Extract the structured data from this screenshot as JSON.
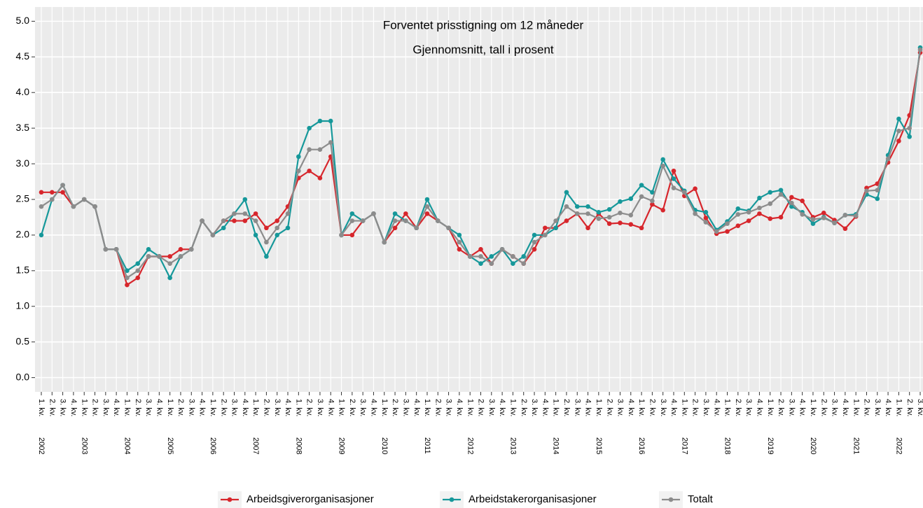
{
  "chart_data": {
    "type": "line",
    "title": "Forventet prisstigning om 12 måneder",
    "subtitle": "Gjennomsnitt, tall i prosent",
    "categories": [
      "1. kv.",
      "2. kv.",
      "3. kv.",
      "4. kv.",
      "1. kv.",
      "2. kv.",
      "3. kv.",
      "4. kv.",
      "1. kv.",
      "2. kv.",
      "3. kv.",
      "4. kv.",
      "1. kv.",
      "2. kv.",
      "3. kv.",
      "4. kv.",
      "1. kv.",
      "2. kv.",
      "3. kv.",
      "4. kv.",
      "1. kv.",
      "2. kv.",
      "3. kv.",
      "4. kv.",
      "1. kv.",
      "2. kv.",
      "3. kv.",
      "4. kv.",
      "1. kv.",
      "2. kv.",
      "3. kv.",
      "4. kv.",
      "1. kv.",
      "2. kv.",
      "3. kv.",
      "4. kv.",
      "1. kv.",
      "2. kv.",
      "3. kv.",
      "4. kv.",
      "1. kv.",
      "2. kv.",
      "3. kv.",
      "4. kv.",
      "1. kv.",
      "2. kv.",
      "3. kv.",
      "4. kv.",
      "1. kv.",
      "2. kv.",
      "3. kv.",
      "4. kv.",
      "1. kv.",
      "2. kv.",
      "3. kv.",
      "4. kv.",
      "1. kv.",
      "2. kv.",
      "3. kv.",
      "4. kv.",
      "1. kv.",
      "2. kv.",
      "3. kv.",
      "4. kv.",
      "1. kv.",
      "2. kv.",
      "3. kv.",
      "4. kv.",
      "1. kv.",
      "2. kv.",
      "3. kv.",
      "4. kv.",
      "1. kv.",
      "2. kv.",
      "3. kv.",
      "4. kv.",
      "1. kv.",
      "2. kv.",
      "3. kv.",
      "4. kv.",
      "1. kv.",
      "2. kv.",
      "3. kv."
    ],
    "years": [
      "2002",
      "2003",
      "2004",
      "2005",
      "2006",
      "2007",
      "2008",
      "2009",
      "2010",
      "2011",
      "2012",
      "2013",
      "2014",
      "2015",
      "2016",
      "2017",
      "2018",
      "2019",
      "2020",
      "2021",
      "2022"
    ],
    "series": [
      {
        "name": "Arbeidsgiverorganisasjoner",
        "color": "#d7262c",
        "values": [
          2.6,
          2.6,
          2.6,
          2.4,
          2.5,
          2.4,
          1.8,
          1.8,
          1.3,
          1.4,
          1.7,
          1.7,
          1.7,
          1.8,
          1.8,
          2.2,
          2.0,
          2.2,
          2.2,
          2.2,
          2.3,
          2.1,
          2.2,
          2.4,
          2.8,
          2.9,
          2.8,
          3.1,
          2.0,
          2.0,
          2.2,
          2.3,
          1.9,
          2.1,
          2.3,
          2.1,
          2.3,
          2.2,
          2.1,
          1.8,
          1.7,
          1.8,
          1.6,
          1.8,
          1.7,
          1.6,
          1.8,
          2.1,
          2.1,
          2.2,
          2.3,
          2.1,
          2.3,
          2.16,
          2.17,
          2.15,
          2.1,
          2.43,
          2.35,
          2.9,
          2.55,
          2.65,
          2.24,
          2.02,
          2.05,
          2.13,
          2.2,
          2.3,
          2.23,
          2.25,
          2.53,
          2.48,
          2.25,
          2.31,
          2.21,
          2.09,
          2.26,
          2.66,
          2.72,
          3.02,
          3.32,
          3.68,
          4.56
        ]
      },
      {
        "name": "Arbeidstakerorganisasjoner",
        "color": "#16989a",
        "values": [
          2.0,
          2.5,
          2.7,
          2.4,
          2.5,
          2.4,
          1.8,
          1.8,
          1.5,
          1.6,
          1.8,
          1.7,
          1.4,
          1.7,
          1.8,
          2.2,
          2.0,
          2.1,
          2.3,
          2.5,
          2.0,
          1.7,
          2.0,
          2.1,
          3.1,
          3.5,
          3.6,
          3.6,
          2.0,
          2.3,
          2.2,
          2.3,
          1.9,
          2.3,
          2.2,
          2.1,
          2.5,
          2.2,
          2.1,
          2.0,
          1.7,
          1.6,
          1.7,
          1.8,
          1.6,
          1.7,
          2.0,
          2.0,
          2.1,
          2.6,
          2.4,
          2.4,
          2.32,
          2.36,
          2.47,
          2.51,
          2.7,
          2.6,
          3.06,
          2.79,
          2.62,
          2.35,
          2.32,
          2.07,
          2.19,
          2.37,
          2.34,
          2.52,
          2.6,
          2.63,
          2.4,
          2.32,
          2.16,
          2.25,
          2.17,
          2.28,
          2.29,
          2.57,
          2.51,
          3.12,
          3.63,
          3.38,
          4.63
        ]
      },
      {
        "name": "Totalt",
        "color": "#8c8c8c",
        "values": [
          2.4,
          2.5,
          2.7,
          2.4,
          2.5,
          2.4,
          1.8,
          1.8,
          1.4,
          1.5,
          1.7,
          1.7,
          1.6,
          1.7,
          1.8,
          2.2,
          2.0,
          2.2,
          2.3,
          2.3,
          2.2,
          1.9,
          2.1,
          2.3,
          2.9,
          3.2,
          3.2,
          3.3,
          2.0,
          2.2,
          2.2,
          2.3,
          1.9,
          2.2,
          2.2,
          2.1,
          2.4,
          2.2,
          2.1,
          1.9,
          1.7,
          1.7,
          1.6,
          1.8,
          1.7,
          1.6,
          1.9,
          2.0,
          2.2,
          2.4,
          2.3,
          2.3,
          2.23,
          2.25,
          2.31,
          2.28,
          2.54,
          2.48,
          2.97,
          2.66,
          2.6,
          2.3,
          2.18,
          2.05,
          2.16,
          2.29,
          2.32,
          2.38,
          2.44,
          2.57,
          2.45,
          2.29,
          2.22,
          2.24,
          2.17,
          2.28,
          2.27,
          2.62,
          2.63,
          3.07,
          3.46,
          3.5,
          4.6
        ]
      }
    ],
    "ylim": [
      -0.2,
      5.2
    ],
    "yticks": [
      {
        "value": 0,
        "label": "0.0"
      },
      {
        "value": 0.5,
        "label": "0.5"
      },
      {
        "value": 1,
        "label": "1.0"
      },
      {
        "value": 1.5,
        "label": "1.5"
      },
      {
        "value": 2,
        "label": "2.0"
      },
      {
        "value": 2.5,
        "label": "2.5"
      },
      {
        "value": 3,
        "label": "3.0"
      },
      {
        "value": 3.5,
        "label": "3.5"
      },
      {
        "value": 4,
        "label": "4.0"
      },
      {
        "value": 4.5,
        "label": "4.5"
      },
      {
        "value": 5,
        "label": "5.0"
      }
    ],
    "grid": true,
    "legend": "bottom"
  }
}
